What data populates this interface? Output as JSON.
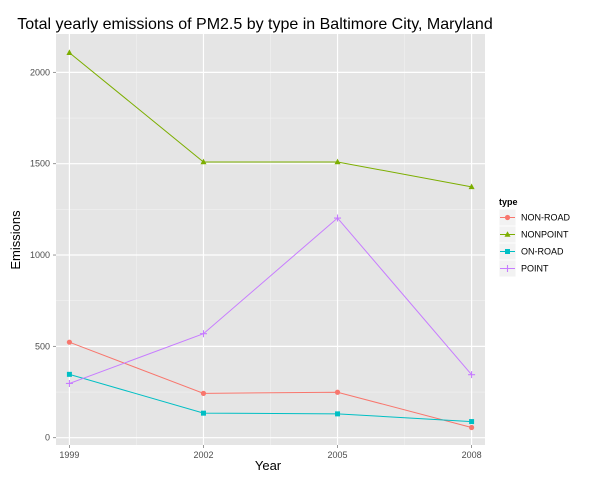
{
  "chart_data": {
    "type": "line",
    "title": "Total yearly emissions of PM2.5 by type in Baltimore City, Maryland",
    "xlabel": "Year",
    "ylabel": "Emissions",
    "x": [
      1999,
      2002,
      2005,
      2008
    ],
    "x_tick_labels": [
      "1999",
      "2002",
      "2005",
      "2008"
    ],
    "y_ticks": [
      0,
      500,
      1000,
      1500,
      2000
    ],
    "y_tick_labels": [
      "0",
      "500",
      "1000",
      "1500",
      "2000"
    ],
    "xlim": [
      1998.7,
      2008.3
    ],
    "ylim": [
      -40,
      2210
    ],
    "grid": true,
    "legend_title": "type",
    "legend_position": "right",
    "series": [
      {
        "name": "NON-ROAD",
        "color": "#F8766D",
        "marker": "circle",
        "values": [
          522.9,
          242.7,
          248.9,
          55.8
        ]
      },
      {
        "name": "NONPOINT",
        "color": "#7CAE00",
        "marker": "triangle",
        "values": [
          2107.6,
          1509.5,
          1509.5,
          1373.2
        ]
      },
      {
        "name": "ON-ROAD",
        "color": "#00BFC4",
        "marker": "square",
        "values": [
          346.8,
          134.3,
          130.4,
          88.3
        ]
      },
      {
        "name": "POINT",
        "color": "#C77CFF",
        "marker": "plus",
        "values": [
          296.8,
          569.3,
          1202.5,
          344.98
        ]
      }
    ]
  }
}
